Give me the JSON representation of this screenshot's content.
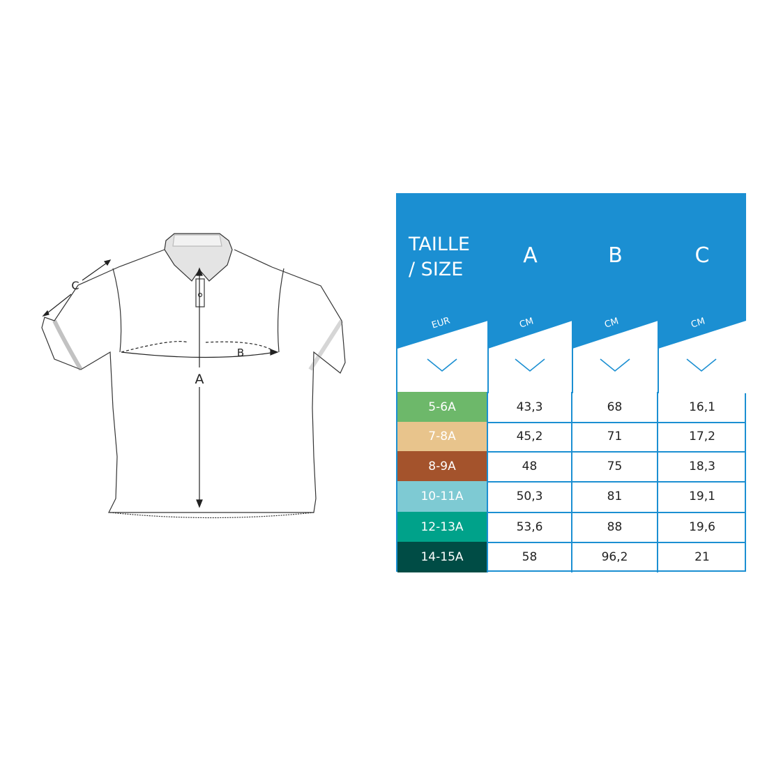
{
  "diagram": {
    "labels": {
      "a": "A",
      "b": "B",
      "c": "C"
    }
  },
  "table": {
    "header_color": "#1b8fd2",
    "columns": [
      {
        "title_line1": "TAILLE",
        "title_line2": "/ SIZE",
        "unit": "EUR"
      },
      {
        "title_line1": "A",
        "title_line2": "",
        "unit": "CM"
      },
      {
        "title_line1": "B",
        "title_line2": "",
        "unit": "CM"
      },
      {
        "title_line1": "C",
        "title_line2": "",
        "unit": "CM"
      }
    ],
    "rows": [
      {
        "size": "5-6A",
        "color": "#6db86a",
        "a": "43,3",
        "b": "68",
        "c": "16,1"
      },
      {
        "size": "7-8A",
        "color": "#e8c48c",
        "a": "45,2",
        "b": "71",
        "c": "17,2"
      },
      {
        "size": "8-9A",
        "color": "#a4532c",
        "a": "48",
        "b": "75",
        "c": "18,3"
      },
      {
        "size": "10-11A",
        "color": "#7ecad3",
        "a": "50,3",
        "b": "81",
        "c": "19,1"
      },
      {
        "size": "12-13A",
        "color": "#00a28a",
        "a": "53,6",
        "b": "88",
        "c": "19,6"
      },
      {
        "size": "14-15A",
        "color": "#004c45",
        "a": "58",
        "b": "96,2",
        "c": "21"
      }
    ]
  }
}
